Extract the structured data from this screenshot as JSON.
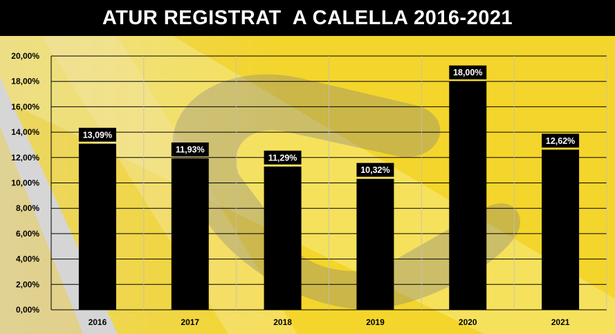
{
  "title": "ATUR REGISTRAT  A CALELLA 2016-2021",
  "colors": {
    "background_yellow": "#f4d52b",
    "bar": "#000000",
    "title_bar": "#000000",
    "title_text": "#ffffff",
    "label_box": "#000000",
    "label_text": "#ffffff",
    "grid": "#000000",
    "watermark_gray": "#8a8a8a"
  },
  "chart_data": {
    "type": "bar",
    "title": "ATUR REGISTRAT  A CALELLA 2016-2021",
    "categories": [
      "2016",
      "2017",
      "2018",
      "2019",
      "2020",
      "2021"
    ],
    "values": [
      13.09,
      11.93,
      11.29,
      10.32,
      18.0,
      12.62
    ],
    "data_labels": [
      "13,09%",
      "11,93%",
      "11,29%",
      "10,32%",
      "18,00%",
      "12,62%"
    ],
    "xlabel": "",
    "ylabel": "",
    "ylim": [
      0,
      20
    ],
    "yticks": [
      0,
      2,
      4,
      6,
      8,
      10,
      12,
      14,
      16,
      18,
      20
    ],
    "ytick_labels": [
      "0,00%",
      "2,00%",
      "4,00%",
      "6,00%",
      "8,00%",
      "10,00%",
      "12,00%",
      "14,00%",
      "16,00%",
      "18,00%",
      "20,00%"
    ],
    "grid": true,
    "legend": "none"
  }
}
